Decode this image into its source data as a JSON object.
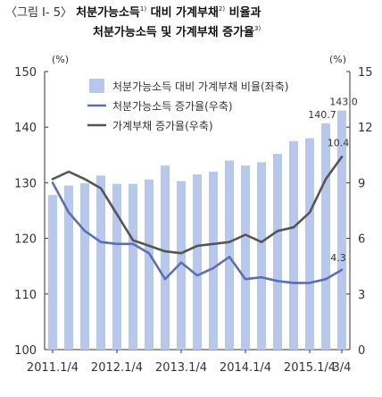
{
  "title": {
    "prefix": "〈그림 Ⅰ- 5〉",
    "line1_a": "처분가능소득",
    "sup1": "1)",
    "line1_b": " 대비 가계부채",
    "sup2": "2)",
    "line1_c": " 비율과",
    "line2": "처분가능소득 및 가계부채 증가율",
    "sup3": "3)"
  },
  "chart_data": {
    "type": "bar+line",
    "x": [
      "2011.1/4",
      "",
      "",
      "",
      "2012.1/4",
      "",
      "",
      "",
      "2013.1/4",
      "",
      "",
      "",
      "2014.1/4",
      "",
      "",
      "",
      "2015.1/4",
      "",
      "3/4"
    ],
    "x_tick_labels": [
      "2011.1/4",
      "2012.1/4",
      "2013.1/4",
      "2014.1/4",
      "2015.1/4",
      "3/4"
    ],
    "left_axis": {
      "unit": "(%)",
      "ylim": [
        100,
        150
      ],
      "ticks": [
        100,
        110,
        120,
        130,
        140,
        150
      ]
    },
    "right_axis": {
      "unit": "(%)",
      "ylim": [
        0,
        15
      ],
      "ticks": [
        0,
        3,
        6,
        9,
        12,
        15
      ]
    },
    "series": [
      {
        "name": "처분가능소득 대비 가계부채 비율(좌축)",
        "type": "bar",
        "axis": "left",
        "color": "#b7c8ea",
        "values": [
          127.8,
          129.5,
          129.9,
          131.3,
          129.8,
          129.8,
          130.6,
          133.1,
          130.3,
          131.5,
          132.0,
          134.0,
          133.1,
          133.7,
          135.2,
          137.5,
          138.0,
          140.7,
          143.0
        ]
      },
      {
        "name": "처분가능소득 증가율(우축)",
        "type": "line",
        "axis": "right",
        "color": "#5d6fb2",
        "values": [
          9.0,
          7.4,
          6.4,
          5.8,
          5.7,
          5.7,
          5.2,
          3.8,
          4.7,
          4.0,
          4.4,
          5.0,
          3.8,
          3.9,
          3.7,
          3.6,
          3.6,
          3.8,
          4.3
        ]
      },
      {
        "name": "가계부채 증가율(우축)",
        "type": "line",
        "axis": "right",
        "color": "#555555",
        "values": [
          9.2,
          9.6,
          9.2,
          8.7,
          7.3,
          5.9,
          5.6,
          5.3,
          5.2,
          5.6,
          5.7,
          5.8,
          6.2,
          5.8,
          6.4,
          6.6,
          7.4,
          9.2,
          10.4
        ]
      }
    ],
    "annotations": [
      "143.0",
      "140.7",
      "10.4",
      "4.3"
    ],
    "grid": false,
    "legend_position": "top-right"
  }
}
